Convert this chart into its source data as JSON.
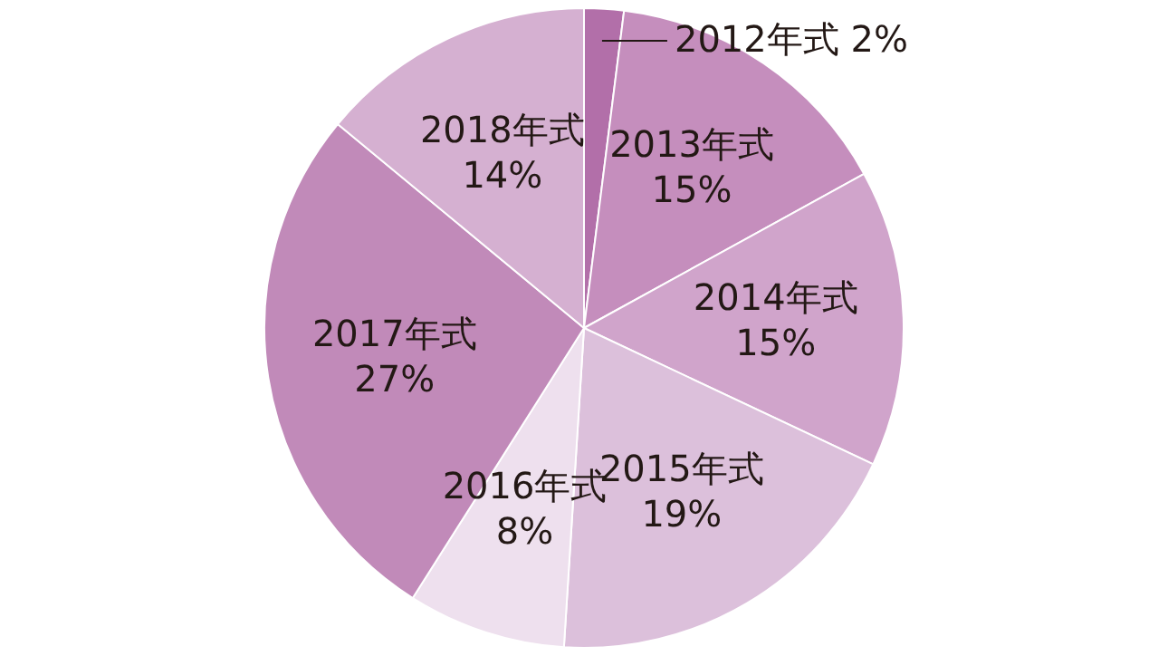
{
  "chart_data": {
    "type": "pie",
    "categories": [
      "2012年式",
      "2013年式",
      "2014年式",
      "2015年式",
      "2016年式",
      "2017年式",
      "2018年式"
    ],
    "values": [
      2,
      15,
      15,
      19,
      8,
      27,
      14
    ],
    "value_labels": [
      "2%",
      "15%",
      "15%",
      "19%",
      "8%",
      "27%",
      "14%"
    ],
    "colors": [
      "#b26fa9",
      "#c58ebd",
      "#d0a4cb",
      "#dcc0db",
      "#eee0ee",
      "#c18ab9",
      "#d5b0d1"
    ],
    "legend": false
  }
}
